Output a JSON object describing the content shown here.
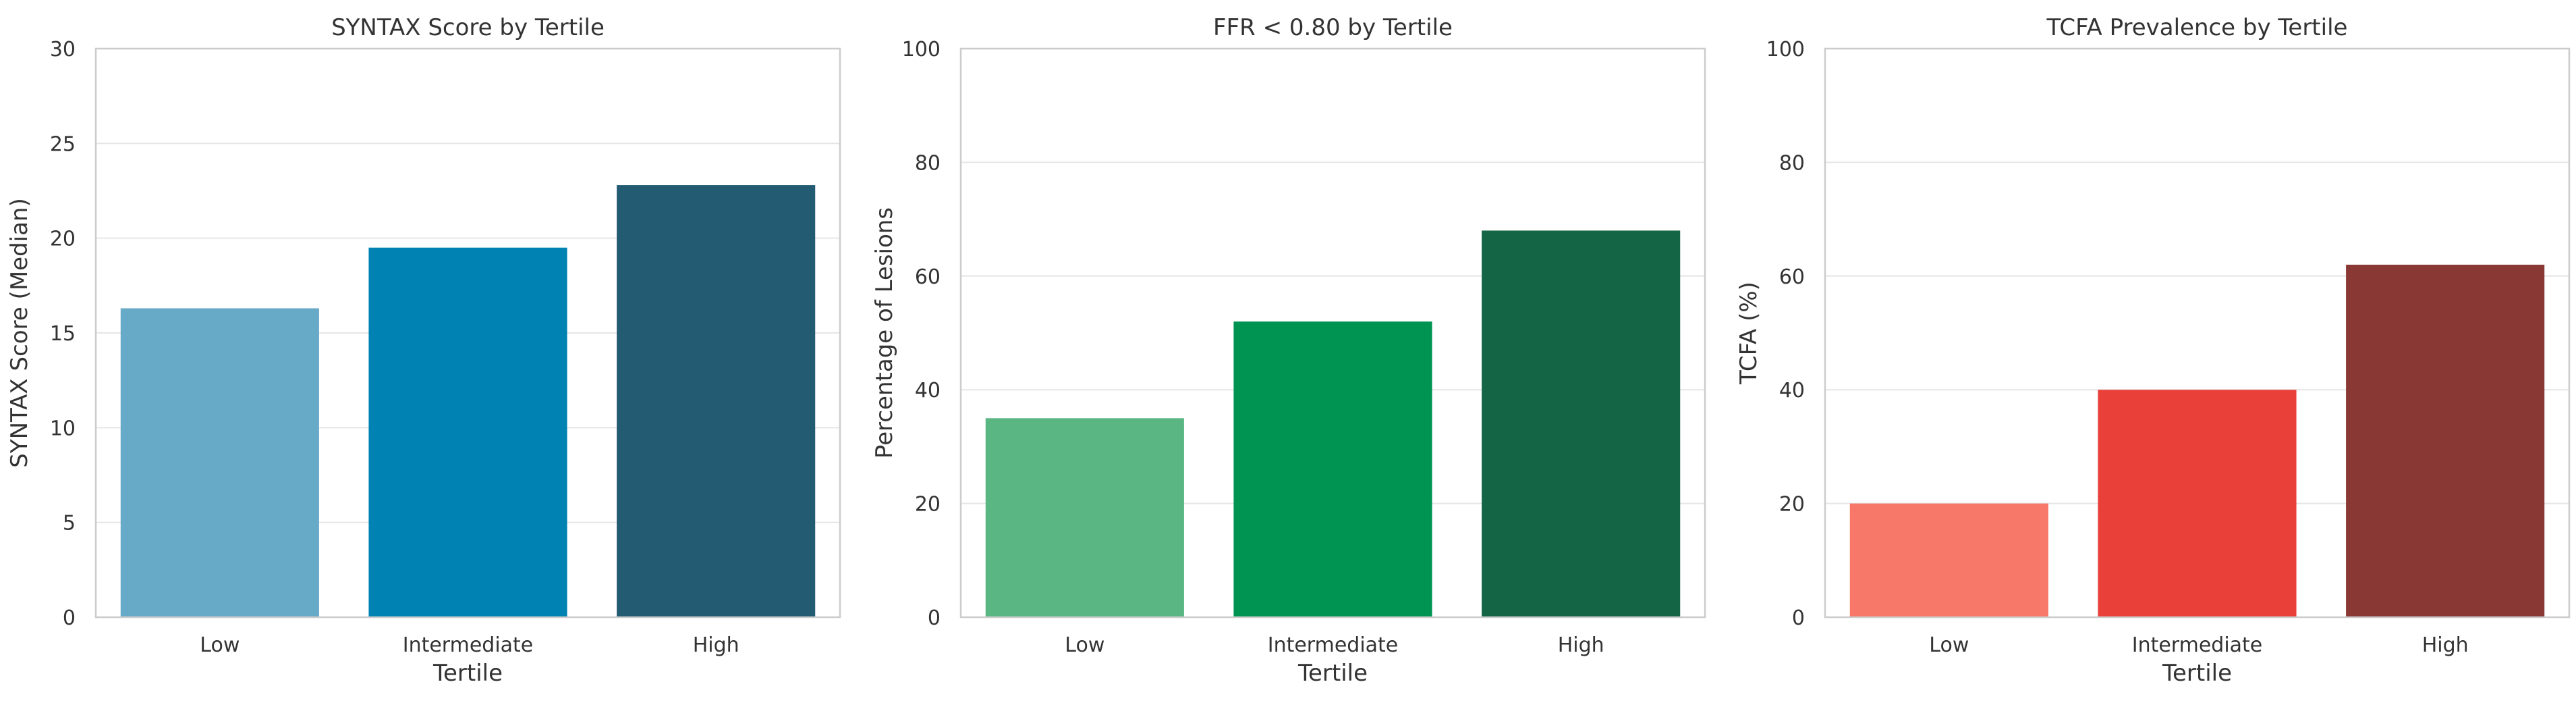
{
  "chart_data": [
    {
      "type": "bar",
      "title": "SYNTAX Score by Tertile",
      "xlabel": "Tertile",
      "ylabel": "SYNTAX Score (Median)",
      "categories": [
        "Low",
        "Intermediate",
        "High"
      ],
      "values": [
        16.3,
        19.5,
        22.8
      ],
      "ylim": [
        0,
        30
      ],
      "yticks": [
        0,
        5,
        10,
        15,
        20,
        25,
        30
      ],
      "colors": [
        "#67aac8",
        "#0083b2",
        "#225b72"
      ],
      "grid": true
    },
    {
      "type": "bar",
      "title": "FFR < 0.80 by Tertile",
      "xlabel": "Tertile",
      "ylabel": "Percentage of Lesions",
      "categories": [
        "Low",
        "Intermediate",
        "High"
      ],
      "values": [
        35,
        52,
        68
      ],
      "ylim": [
        0,
        100
      ],
      "yticks": [
        0,
        20,
        40,
        60,
        80,
        100
      ],
      "colors": [
        "#5ab784",
        "#009452",
        "#136545"
      ],
      "grid": true
    },
    {
      "type": "bar",
      "title": "TCFA Prevalence by Tertile",
      "xlabel": "Tertile",
      "ylabel": "TCFA (%)",
      "categories": [
        "Low",
        "Intermediate",
        "High"
      ],
      "values": [
        20,
        40,
        62
      ],
      "ylim": [
        0,
        100
      ],
      "yticks": [
        0,
        20,
        40,
        60,
        80,
        100
      ],
      "colors": [
        "#f77768",
        "#e9403a",
        "#893834"
      ],
      "grid": true
    }
  ]
}
